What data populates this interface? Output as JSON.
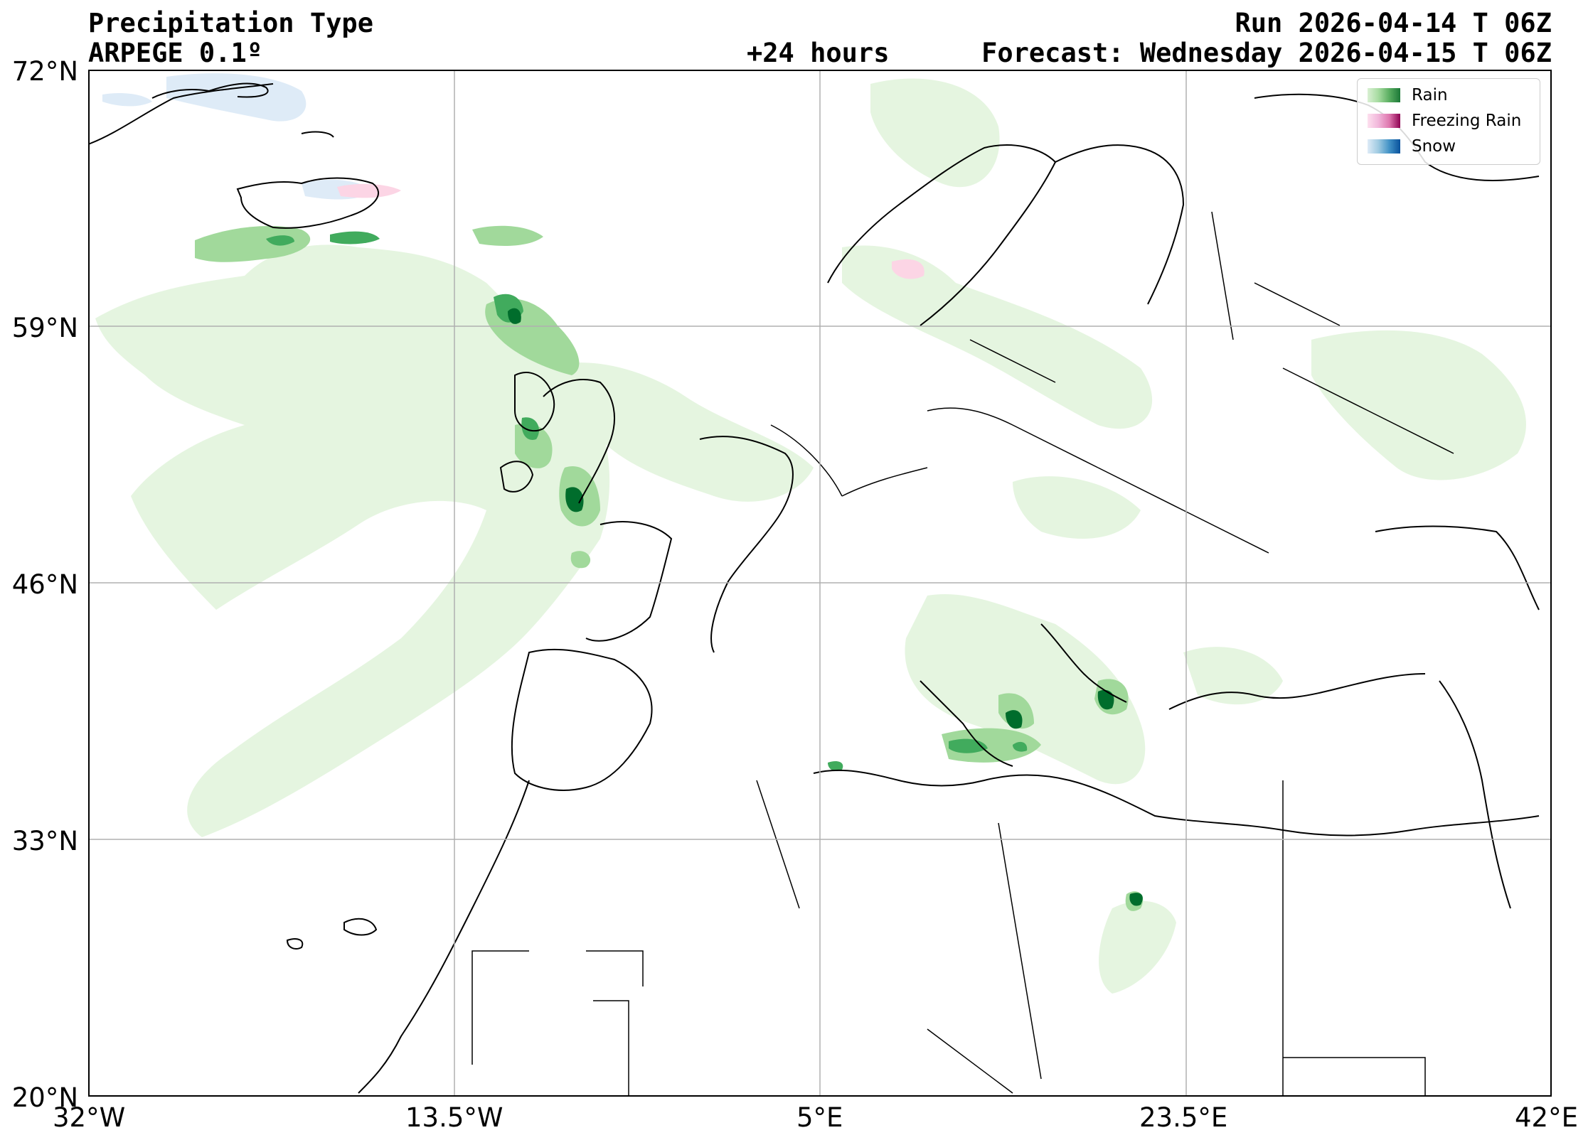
{
  "header": {
    "title": "Precipitation Type",
    "model": "ARPEGE 0.1º",
    "run": "Run 2026-04-14 T 06Z",
    "lead": "+24 hours",
    "forecast": "Forecast: Wednesday 2026-04-15 T 06Z"
  },
  "axes": {
    "lat_ticks": [
      "72°N",
      "59°N",
      "46°N",
      "33°N",
      "20°N"
    ],
    "lon_ticks": [
      "32°W",
      "13.5°W",
      "5°E",
      "23.5°E",
      "42°E"
    ]
  },
  "legend": {
    "placement": "top-right",
    "items": [
      {
        "label": "Rain",
        "colors": [
          "#d9f0d3",
          "#a6dba0",
          "#5aae61",
          "#1b7837"
        ]
      },
      {
        "label": "Freezing Rain",
        "colors": [
          "#fde0ef",
          "#f1b6da",
          "#de77ae",
          "#8e0152"
        ]
      },
      {
        "label": "Snow",
        "colors": [
          "#deebf7",
          "#9ecae1",
          "#4292c6",
          "#08519c"
        ]
      }
    ]
  },
  "colors": {
    "rain_light": "#e5f5e0",
    "rain_mid": "#a1d99b",
    "rain_dark": "#41ab5d",
    "rain_darkest": "#006d2c",
    "snow_light": "#deebf7",
    "freezing_light": "#fcd5e5",
    "grid": "#b0b0b0",
    "coast": "#000000"
  }
}
